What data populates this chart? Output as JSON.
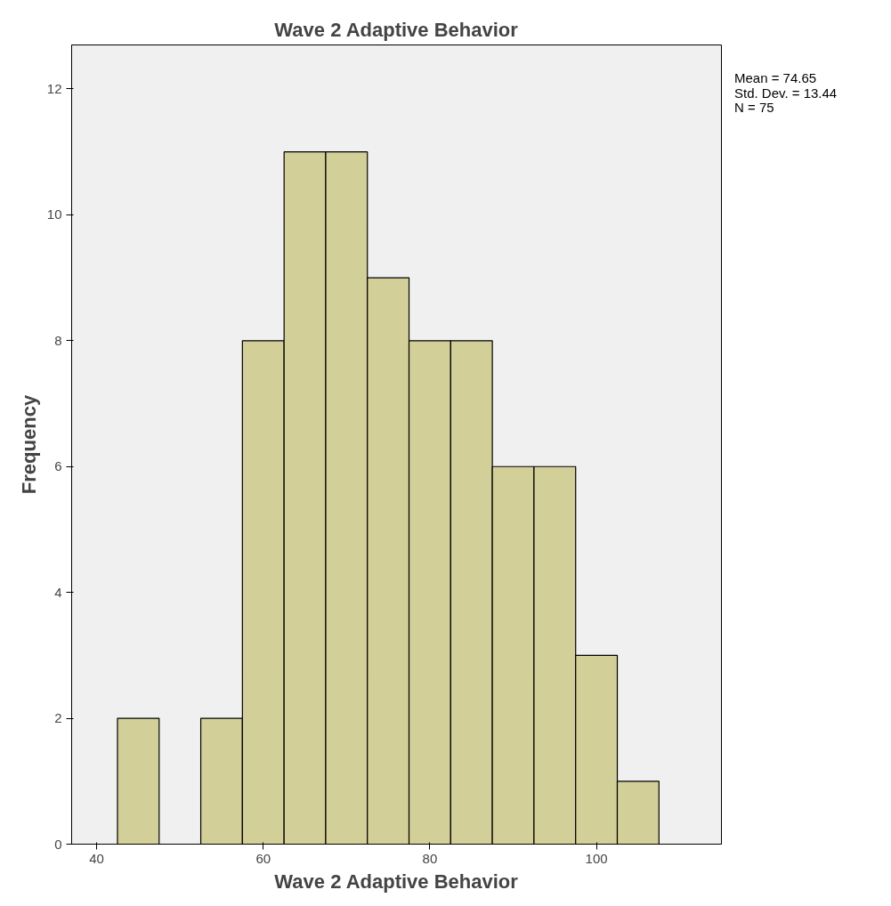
{
  "chart_data": {
    "type": "histogram",
    "title": "Wave 2 Adaptive Behavior",
    "xlabel": "Wave 2 Adaptive Behavior",
    "ylabel": "Frequency",
    "bins": [
      42.5,
      47.5,
      52.5,
      57.5,
      62.5,
      67.5,
      72.5,
      77.5,
      82.5,
      87.5,
      92.5,
      97.5,
      102.5,
      107.5
    ],
    "values": [
      2,
      0,
      2,
      8,
      11,
      11,
      9,
      8,
      8,
      6,
      6,
      3,
      1
    ],
    "color": "#d3cf98",
    "xlim": [
      37,
      115
    ],
    "xticks": [
      40,
      60,
      80,
      100
    ],
    "ylim": [
      0,
      12.7
    ],
    "yticks": [
      0,
      2,
      4,
      6,
      8,
      10,
      12
    ],
    "grid": false,
    "annotations": [
      "Mean = 74.65\nStd. Dev. = 13.44\nN = 75"
    ]
  }
}
